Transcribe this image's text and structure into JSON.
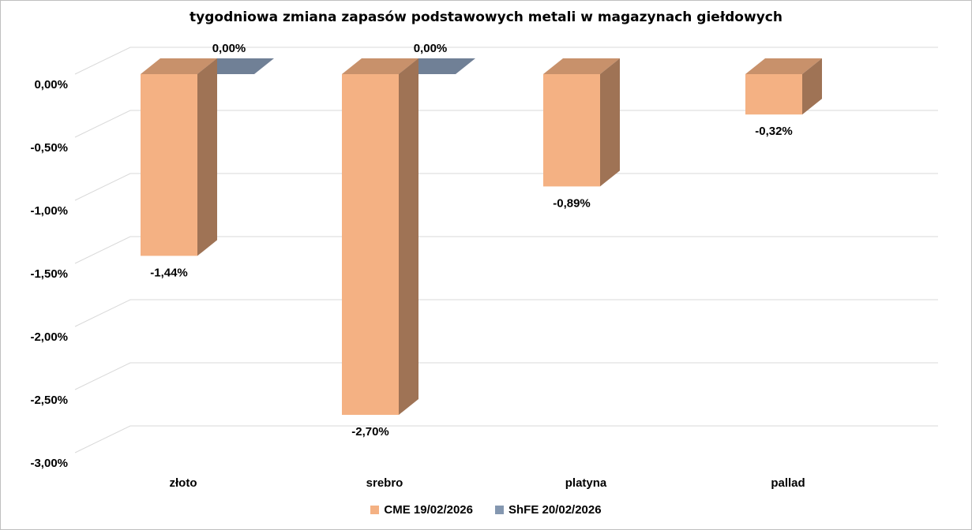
{
  "chart_data": {
    "type": "bar",
    "title": "tygodniowa zmiana zapasów podstawowych metali w magazynach giełdowych",
    "categories": [
      "złoto",
      "srebro",
      "platyna",
      "pallad"
    ],
    "series": [
      {
        "name": "CME 19/02/2026",
        "values": [
          -1.44,
          -2.7,
          -0.89,
          -0.32
        ],
        "labels": [
          "-1,44%",
          "-2,70%",
          "-0,89%",
          "-0,32%"
        ],
        "color": "#F4B183"
      },
      {
        "name": "ShFE 20/02/2026",
        "values": [
          0.0,
          0.0,
          null,
          null
        ],
        "labels": [
          "0,00%",
          "0,00%",
          "",
          ""
        ],
        "color": "#8497B0"
      }
    ],
    "yticks": [
      "0,00%",
      "-0,50%",
      "-1,00%",
      "-1,50%",
      "-2,00%",
      "-2,50%",
      "-3,00%"
    ],
    "ylim": [
      -3.0,
      0.0
    ],
    "grid": true,
    "legend": "bottom",
    "three_d": true
  }
}
